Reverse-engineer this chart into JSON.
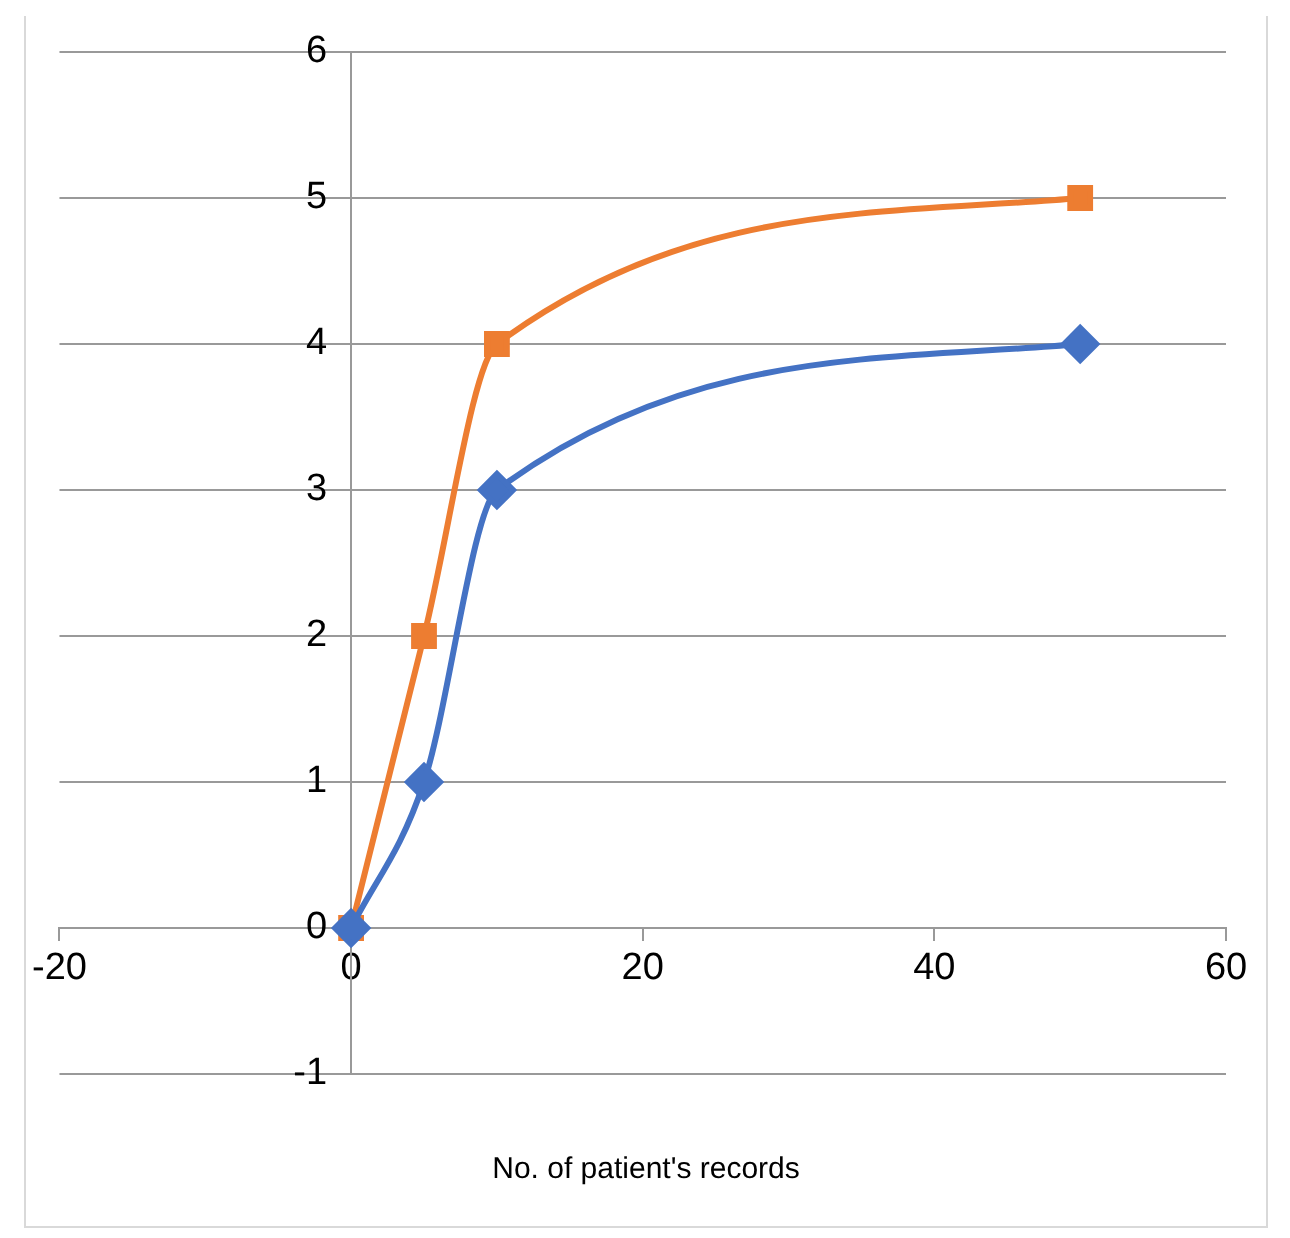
{
  "chart_data": {
    "type": "line",
    "xlabel": "No. of patient's records",
    "xlim": [
      -20,
      60
    ],
    "xticks": [
      -20,
      0,
      20,
      40,
      60
    ],
    "ylim": [
      -1,
      6
    ],
    "yticks": [
      -1,
      0,
      1,
      2,
      3,
      4,
      5,
      6
    ],
    "grid": "y",
    "legend": false,
    "line_style": "solid",
    "series": [
      {
        "color": "#4472c4",
        "marker": "diamond",
        "x": [
          0,
          5,
          10,
          50
        ],
        "values": [
          0,
          1,
          3,
          4
        ]
      },
      {
        "color": "#ed7d31",
        "marker": "square",
        "x": [
          0,
          5,
          10,
          50
        ],
        "values": [
          0,
          2,
          4,
          5
        ]
      }
    ]
  }
}
